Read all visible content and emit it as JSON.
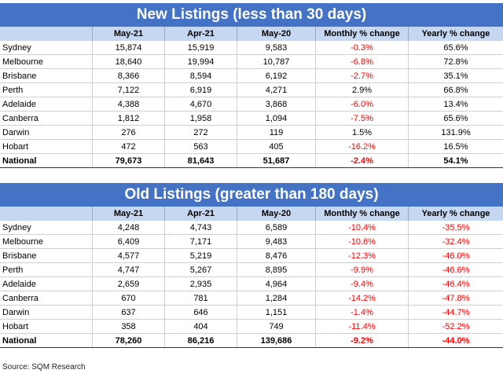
{
  "tables": [
    {
      "title": "New Listings (less than 30 days)",
      "headers": [
        "",
        "May-21",
        "Apr-21",
        "May-20",
        "Monthly % change",
        "Yearly % change"
      ],
      "rows": [
        [
          "Sydney",
          "15,874",
          "15,919",
          "9,583",
          "-0.3%",
          "65.6%"
        ],
        [
          "Melbourne",
          "18,640",
          "19,994",
          "10,787",
          "-6.8%",
          "72.8%"
        ],
        [
          "Brisbane",
          "8,366",
          "8,594",
          "6,192",
          "-2.7%",
          "35.1%"
        ],
        [
          "Perth",
          "7,122",
          "6,919",
          "4,271",
          "2.9%",
          "66.8%"
        ],
        [
          "Adelaide",
          "4,388",
          "4,670",
          "3,868",
          "-6.0%",
          "13.4%"
        ],
        [
          "Canberra",
          "1,812",
          "1,958",
          "1,094",
          "-7.5%",
          "65.6%"
        ],
        [
          "Darwin",
          "276",
          "272",
          "119",
          "1.5%",
          "131.9%"
        ],
        [
          "Hobart",
          "472",
          "563",
          "405",
          "-16.2%",
          "16.5%"
        ]
      ],
      "total": [
        "National",
        "79,673",
        "81,643",
        "51,687",
        "-2.4%",
        "54.1%"
      ]
    },
    {
      "title": "Old Listings (greater than 180 days)",
      "headers": [
        "",
        "May-21",
        "Apr-21",
        "May-20",
        "Monthly % change",
        "Yearly % change"
      ],
      "rows": [
        [
          "Sydney",
          "4,248",
          "4,743",
          "6,589",
          "-10.4%",
          "-35.5%"
        ],
        [
          "Melbourne",
          "6,409",
          "7,171",
          "9,483",
          "-10.6%",
          "-32.4%"
        ],
        [
          "Brisbane",
          "4,577",
          "5,219",
          "8,476",
          "-12.3%",
          "-46.0%"
        ],
        [
          "Perth",
          "4,747",
          "5,267",
          "8,895",
          "-9.9%",
          "-46.6%"
        ],
        [
          "Adelaide",
          "2,659",
          "2,935",
          "4,964",
          "-9.4%",
          "-46.4%"
        ],
        [
          "Canberra",
          "670",
          "781",
          "1,284",
          "-14.2%",
          "-47.8%"
        ],
        [
          "Darwin",
          "637",
          "646",
          "1,151",
          "-1.4%",
          "-44.7%"
        ],
        [
          "Hobart",
          "358",
          "404",
          "749",
          "-11.4%",
          "-52.2%"
        ]
      ],
      "total": [
        "National",
        "78,260",
        "86,216",
        "139,686",
        "-9.2%",
        "-44.0%"
      ]
    }
  ],
  "source": "Source: SQM Research",
  "colors": {
    "title_bg": "#4472c4",
    "header_bg": "#c5d7f1",
    "negative": "#ff0000"
  }
}
